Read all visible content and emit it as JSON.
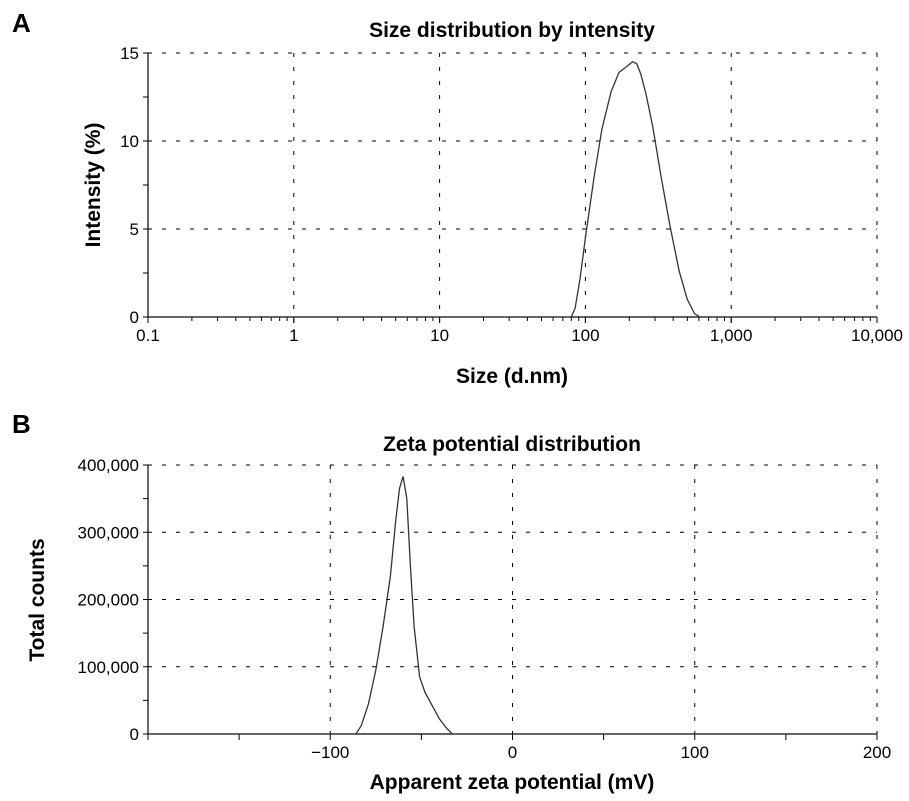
{
  "chart_data": [
    {
      "panel_label": "A",
      "type": "line",
      "title": "Size distribution by intensity",
      "xlabel": "Size (d.nm)",
      "ylabel": "Intensity (%)",
      "xscale": "log",
      "xlim": [
        0.1,
        10000
      ],
      "ylim": [
        0,
        15
      ],
      "x_tick_labels": [
        "0.1",
        "1",
        "10",
        "100",
        "1,000",
        "10,000"
      ],
      "x_tick_values": [
        0.1,
        1,
        10,
        100,
        1000,
        10000
      ],
      "y_tick_labels": [
        "0",
        "5",
        "10",
        "15"
      ],
      "y_tick_values": [
        0,
        5,
        10,
        15
      ],
      "grid": true,
      "series": [
        {
          "x": [
            0.1,
            80,
            85,
            92,
            100,
            115,
            130,
            150,
            170,
            190,
            210,
            225,
            240,
            260,
            290,
            330,
            380,
            440,
            500,
            560,
            610,
            10000
          ],
          "y": [
            0,
            0,
            0.5,
            2.2,
            4.5,
            8.0,
            10.7,
            12.8,
            13.9,
            14.2,
            14.5,
            14.4,
            13.8,
            12.7,
            10.8,
            8.0,
            5.2,
            2.6,
            1.0,
            0.2,
            0,
            0
          ]
        }
      ]
    },
    {
      "panel_label": "B",
      "type": "line",
      "title": "Zeta potential distribution",
      "xlabel": "Apparent zeta potential (mV)",
      "ylabel": "Total counts",
      "xlim": [
        -200,
        200
      ],
      "ylim": [
        0,
        400000
      ],
      "x_tick_labels": [
        "−100",
        "0",
        "100",
        "200"
      ],
      "x_tick_values": [
        -100,
        0,
        100,
        200
      ],
      "y_tick_labels": [
        "0",
        "100,000",
        "200,000",
        "300,000",
        "400,000"
      ],
      "y_tick_values": [
        0,
        100000,
        200000,
        300000,
        400000
      ],
      "grid": true,
      "series": [
        {
          "x": [
            -200,
            -86,
            -83,
            -79,
            -75,
            -71,
            -67,
            -64,
            -62,
            -60,
            -58,
            -56,
            -54,
            -51,
            -48,
            -44,
            -40,
            -36,
            -33,
            200
          ],
          "y": [
            0,
            0,
            12000,
            45000,
            95000,
            160000,
            235000,
            320000,
            365000,
            383000,
            350000,
            250000,
            160000,
            85000,
            62000,
            42000,
            22000,
            8000,
            0,
            0
          ]
        }
      ]
    }
  ]
}
